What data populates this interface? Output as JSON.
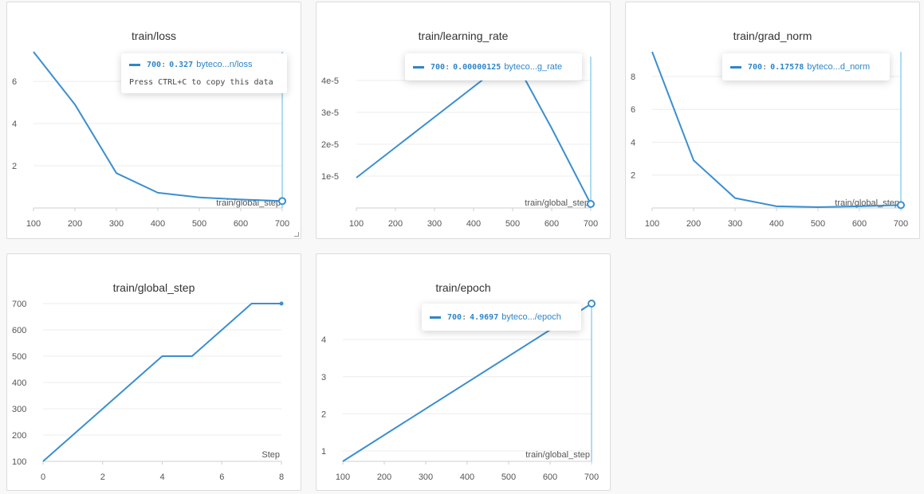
{
  "colors": {
    "line": "#3b8fd0",
    "grid": "#ececec",
    "axis": "#cfcfcf",
    "tick_text": "#555555"
  },
  "tooltip_note": "Press CTRL+C to copy this data",
  "panels": [
    {
      "title": "train/loss",
      "xlabel": "train/global_step",
      "tooltip": {
        "step": "700",
        "value": "0.327",
        "name": "byteco...n/loss",
        "show_note": true
      }
    },
    {
      "title": "train/learning_rate",
      "xlabel": "train/global_step",
      "tooltip": {
        "step": "700",
        "value": "0.00000125",
        "name": "byteco...g_rate"
      }
    },
    {
      "title": "train/grad_norm",
      "xlabel": "train/global_step",
      "tooltip": {
        "step": "700",
        "value": "0.17578",
        "name": "byteco...d_norm"
      }
    },
    {
      "title": "train/global_step",
      "xlabel": "Step"
    },
    {
      "title": "train/epoch",
      "xlabel": "train/global_step",
      "tooltip": {
        "step": "700",
        "value": "4.9697",
        "name": "byteco.../epoch"
      }
    }
  ],
  "chart_data": [
    {
      "type": "line",
      "title": "train/loss",
      "xlabel": "train/global_step",
      "ylabel": "",
      "x": [
        100,
        200,
        300,
        400,
        500,
        600,
        700
      ],
      "series": [
        {
          "values": [
            7.4,
            4.9,
            1.65,
            0.72,
            0.5,
            0.4,
            0.327
          ]
        }
      ],
      "xticks": [
        "100",
        "200",
        "300",
        "400",
        "500",
        "600",
        "700"
      ],
      "yticks": [
        "2",
        "4",
        "6"
      ],
      "ytick_values": [
        2,
        4,
        6
      ],
      "xlim": [
        100,
        700
      ],
      "ylim": [
        0,
        7.4
      ],
      "grid": true,
      "highlight_index": 6
    },
    {
      "type": "line",
      "title": "train/learning_rate",
      "xlabel": "train/global_step",
      "ylabel": "",
      "x": [
        100,
        200,
        300,
        400,
        500,
        600,
        700
      ],
      "series": [
        {
          "values": [
            9.5e-06,
            1.9e-05,
            2.85e-05,
            3.8e-05,
            4.75e-05,
            2.5e-05,
            1.25e-06
          ]
        }
      ],
      "xticks": [
        "100",
        "200",
        "300",
        "400",
        "500",
        "600",
        "700"
      ],
      "yticks": [
        "1e-5",
        "2e-5",
        "3e-5",
        "4e-5"
      ],
      "ytick_values": [
        1e-05,
        2e-05,
        3e-05,
        4e-05
      ],
      "xlim": [
        100,
        700
      ],
      "ylim": [
        0,
        4.75e-05
      ],
      "grid": true,
      "highlight_index": 6
    },
    {
      "type": "line",
      "title": "train/grad_norm",
      "xlabel": "train/global_step",
      "ylabel": "",
      "x": [
        100,
        200,
        300,
        400,
        500,
        600,
        700
      ],
      "series": [
        {
          "values": [
            9.5,
            2.9,
            0.6,
            0.1,
            0.05,
            0.1,
            0.17578
          ]
        }
      ],
      "xticks": [
        "100",
        "200",
        "300",
        "400",
        "500",
        "600",
        "700"
      ],
      "yticks": [
        "2",
        "4",
        "6",
        "8"
      ],
      "ytick_values": [
        2,
        4,
        6,
        8
      ],
      "xlim": [
        100,
        700
      ],
      "ylim": [
        0,
        9.5
      ],
      "grid": true,
      "highlight_index": 6
    },
    {
      "type": "line",
      "title": "train/global_step",
      "xlabel": "Step",
      "ylabel": "",
      "x": [
        0,
        1,
        2,
        3,
        4,
        5,
        6,
        7,
        8
      ],
      "series": [
        {
          "values": [
            100,
            200,
            300,
            400,
            500,
            500,
            600,
            700,
            700
          ]
        }
      ],
      "xticks": [
        "0",
        "2",
        "4",
        "6",
        "8"
      ],
      "xtick_values": [
        0,
        2,
        4,
        6,
        8
      ],
      "yticks": [
        "100",
        "200",
        "300",
        "400",
        "500",
        "600",
        "700"
      ],
      "ytick_values": [
        100,
        200,
        300,
        400,
        500,
        600,
        700
      ],
      "xlim": [
        0,
        8
      ],
      "ylim": [
        100,
        700
      ],
      "grid": true,
      "end_dot": true
    },
    {
      "type": "line",
      "title": "train/epoch",
      "xlabel": "train/global_step",
      "ylabel": "",
      "x": [
        100,
        700
      ],
      "series": [
        {
          "values": [
            0.72,
            4.9697
          ]
        }
      ],
      "xticks": [
        "100",
        "200",
        "300",
        "400",
        "500",
        "600",
        "700"
      ],
      "yticks": [
        "1",
        "2",
        "3",
        "4"
      ],
      "ytick_values": [
        1,
        2,
        3,
        4
      ],
      "xlim": [
        100,
        700
      ],
      "ylim": [
        0.72,
        4.9697
      ],
      "grid": true,
      "highlight_index": 1
    }
  ]
}
